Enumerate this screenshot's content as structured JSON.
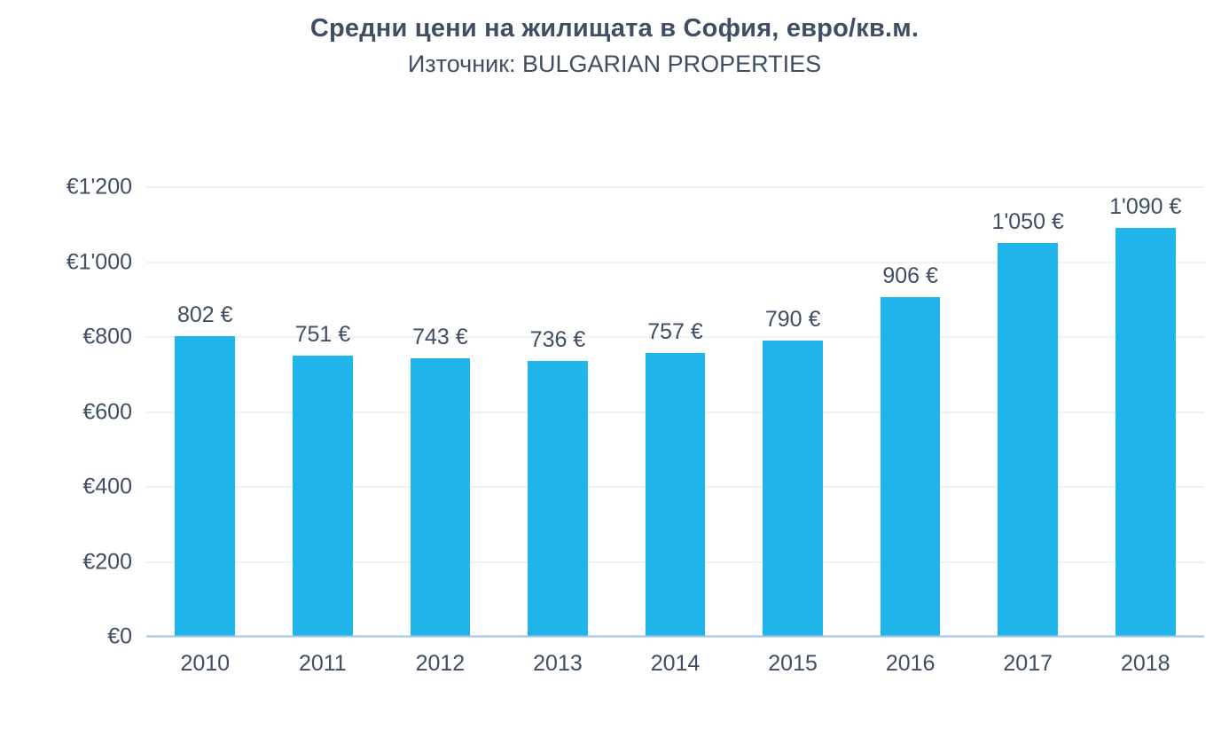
{
  "chart_data": {
    "type": "bar",
    "title": "Средни цени на жилищата в София, евро/кв.м.",
    "subtitle": "Източник: BULGARIAN PROPERTIES",
    "categories": [
      "2010",
      "2011",
      "2012",
      "2013",
      "2014",
      "2015",
      "2016",
      "2017",
      "2018"
    ],
    "values": [
      802,
      751,
      743,
      736,
      757,
      790,
      906,
      1050,
      1090
    ],
    "value_labels": [
      "802 €",
      "751 €",
      "743 €",
      "736 €",
      "757 €",
      "790 €",
      "906 €",
      "1'050 €",
      "1'090 €"
    ],
    "xlabel": "",
    "ylabel": "",
    "ylim": [
      0,
      1200
    ],
    "y_ticks": [
      {
        "value": 0,
        "label": "€0"
      },
      {
        "value": 200,
        "label": "€200"
      },
      {
        "value": 400,
        "label": "€400"
      },
      {
        "value": 600,
        "label": "€600"
      },
      {
        "value": 800,
        "label": "€800"
      },
      {
        "value": 1000,
        "label": "€1'000"
      },
      {
        "value": 1200,
        "label": "€1'200"
      }
    ],
    "grid": true,
    "legend_position": "none",
    "colors": {
      "bar": "#1FB5EA",
      "title_text": "#3F4E63",
      "axis_text": "#3F4E63",
      "gridline": "#E2E4E6",
      "baseline": "#9DC3E6"
    }
  }
}
